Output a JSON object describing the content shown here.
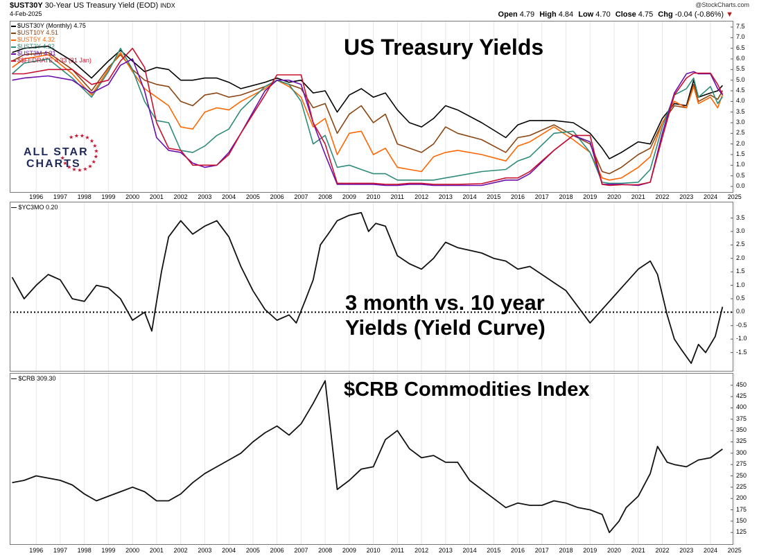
{
  "header": {
    "symbol": "$UST30Y",
    "description": "30-Year US Treasury Yield (EOD)",
    "exchange": "INDX",
    "date": "4-Feb-2025",
    "watermark": "@StockCharts.com",
    "ohlc": {
      "open_label": "Open",
      "open": "4.79",
      "high_label": "High",
      "high": "4.84",
      "low_label": "Low",
      "low": "4.70",
      "close_label": "Close",
      "close": "4.75",
      "chg_label": "Chg",
      "chg": "-0.04 (-0.86%)"
    }
  },
  "logo": {
    "line1": "ALL STAR",
    "line2": "CHARTS",
    "color": "#1f2a5a",
    "star_color": "#c8102e"
  },
  "x_labels": [
    "1996",
    "1997",
    "1998",
    "1999",
    "2000",
    "2001",
    "2002",
    "2003",
    "2004",
    "2005",
    "2006",
    "2007",
    "2008",
    "2009",
    "2010",
    "2011",
    "2012",
    "2013",
    "2014",
    "2015",
    "2016",
    "2017",
    "2018",
    "2019",
    "2020",
    "2021",
    "2022",
    "2023",
    "2024",
    "2025"
  ],
  "chart_data": [
    {
      "type": "line",
      "title": "US Treasury Yields",
      "ylim": [
        0,
        7.5
      ],
      "yticks": [
        "0.0",
        "0.5",
        "1.0",
        "1.5",
        "2.0",
        "2.5",
        "3.0",
        "3.5",
        "4.0",
        "4.5",
        "5.0",
        "5.5",
        "6.0",
        "6.5",
        "7.0",
        "7.5"
      ],
      "x": [
        1995.5,
        1996,
        1997,
        1998,
        1998.8,
        1999.5,
        2000,
        2000.5,
        2001,
        2001.5,
        2002,
        2002.5,
        2003,
        2003.5,
        2004,
        2004.5,
        2005,
        2006,
        2006.5,
        2007,
        2007.5,
        2008,
        2008.5,
        2009,
        2009.5,
        2010,
        2010.5,
        2011,
        2011.5,
        2012,
        2012.5,
        2013,
        2013.5,
        2014,
        2015,
        2016,
        2016.5,
        2017,
        2018,
        2018.8,
        2019.5,
        2020,
        2020.3,
        2020.8,
        2021.5,
        2022,
        2022.5,
        2023,
        2023.5,
        2023.8,
        2024,
        2024.5,
        2024.8,
        2025
      ],
      "series": [
        {
          "name": "$UST30Y (Monthly) 4.75",
          "color": "#000000",
          "values": [
            6.3,
            6.5,
            6.6,
            5.9,
            5.1,
            5.9,
            6.4,
            5.9,
            5.4,
            5.6,
            5.5,
            5.0,
            5.0,
            5.1,
            5.1,
            4.9,
            4.6,
            4.9,
            5.1,
            4.9,
            5.0,
            4.4,
            4.5,
            3.5,
            4.3,
            4.6,
            4.2,
            4.4,
            3.6,
            3.0,
            2.8,
            3.2,
            3.8,
            3.6,
            3.0,
            2.3,
            2.9,
            3.1,
            3.1,
            3.0,
            2.5,
            1.8,
            1.3,
            1.6,
            2.1,
            2.0,
            3.2,
            3.9,
            3.8,
            5.0,
            4.2,
            4.4,
            4.5,
            4.75
          ]
        },
        {
          "name": "$UST10Y 4.51",
          "color": "#8b4513",
          "values": [
            5.9,
            6.2,
            6.3,
            5.5,
            4.5,
            5.6,
            6.2,
            5.5,
            5.0,
            4.8,
            4.7,
            4.0,
            3.8,
            4.3,
            4.4,
            4.2,
            4.3,
            4.7,
            5.0,
            4.8,
            4.6,
            3.7,
            3.9,
            2.5,
            3.4,
            3.8,
            3.0,
            3.4,
            2.0,
            1.8,
            1.6,
            2.0,
            2.8,
            2.5,
            2.2,
            1.6,
            2.3,
            2.4,
            2.9,
            2.4,
            2.0,
            0.7,
            0.6,
            0.9,
            1.5,
            1.8,
            3.0,
            3.8,
            3.7,
            4.8,
            4.0,
            4.3,
            4.1,
            4.51
          ]
        },
        {
          "name": "$UST5Y 4.32",
          "color": "#ff6600",
          "values": [
            5.6,
            6.0,
            6.2,
            5.3,
            4.3,
            5.5,
            6.3,
            5.4,
            4.6,
            4.2,
            3.8,
            2.8,
            2.7,
            3.5,
            3.7,
            3.6,
            4.0,
            4.6,
            5.0,
            4.7,
            4.2,
            2.8,
            3.2,
            1.5,
            2.5,
            2.6,
            1.5,
            1.8,
            0.9,
            0.8,
            0.7,
            1.4,
            1.6,
            1.7,
            1.5,
            1.2,
            1.9,
            2.1,
            2.8,
            2.2,
            1.6,
            0.4,
            0.3,
            0.4,
            0.9,
            1.4,
            3.0,
            4.0,
            3.7,
            4.7,
            3.9,
            4.2,
            3.7,
            4.32
          ]
        },
        {
          "name": "$UST2Y 4.22",
          "color": "#2e8b7a",
          "values": [
            5.3,
            5.8,
            6.0,
            5.1,
            4.2,
            5.4,
            6.5,
            5.5,
            4.0,
            3.1,
            3.0,
            1.7,
            1.6,
            1.9,
            2.4,
            2.7,
            3.6,
            4.7,
            5.0,
            4.8,
            4.0,
            2.0,
            2.4,
            0.9,
            1.0,
            0.8,
            0.6,
            0.6,
            0.3,
            0.3,
            0.3,
            0.3,
            0.4,
            0.5,
            0.7,
            0.8,
            1.2,
            1.4,
            2.5,
            2.6,
            1.6,
            0.2,
            0.15,
            0.15,
            0.2,
            0.8,
            2.8,
            4.3,
            4.6,
            5.1,
            4.2,
            4.7,
            3.9,
            4.22
          ]
        },
        {
          "name": "$UST3M 4.31",
          "color": "#6a0dad",
          "values": [
            5.0,
            5.1,
            5.2,
            5.0,
            4.4,
            4.8,
            5.7,
            6.0,
            4.5,
            2.3,
            1.7,
            1.6,
            1.1,
            0.9,
            1.0,
            1.6,
            2.5,
            4.5,
            5.0,
            5.0,
            4.8,
            3.0,
            1.5,
            0.1,
            0.1,
            0.1,
            0.1,
            0.05,
            0.05,
            0.1,
            0.1,
            0.05,
            0.05,
            0.05,
            0.05,
            0.3,
            0.3,
            0.6,
            1.7,
            2.4,
            2.1,
            0.1,
            0.1,
            0.1,
            0.05,
            0.2,
            2.5,
            4.4,
            5.3,
            5.4,
            5.3,
            5.3,
            4.6,
            4.31
          ]
        },
        {
          "name": "$$FEDRATE 4.33 (31 Jan)",
          "color": "#c8102e",
          "values": [
            5.3,
            5.3,
            5.5,
            5.5,
            4.8,
            5.0,
            5.9,
            6.5,
            5.6,
            3.0,
            1.8,
            1.7,
            1.0,
            1.0,
            1.0,
            1.5,
            2.5,
            4.3,
            5.25,
            5.25,
            5.25,
            3.0,
            2.0,
            0.15,
            0.15,
            0.15,
            0.15,
            0.1,
            0.1,
            0.15,
            0.15,
            0.1,
            0.1,
            0.1,
            0.13,
            0.4,
            0.4,
            0.7,
            1.7,
            2.4,
            2.4,
            0.1,
            0.05,
            0.08,
            0.08,
            0.2,
            2.3,
            4.3,
            5.1,
            5.33,
            5.33,
            5.33,
            4.8,
            4.33
          ]
        }
      ]
    },
    {
      "type": "line",
      "title": "3 month vs. 10 year",
      "subtitle": "Yields (Yield Curve)",
      "series_label": "$YC3MO 0.20",
      "ylim": [
        -2.0,
        3.9
      ],
      "yticks": [
        "-1.5",
        "-1.0",
        "-0.5",
        "0.0",
        "0.5",
        "1.0",
        "1.5",
        "2.0",
        "2.5",
        "3.0",
        "3.5"
      ],
      "x": [
        1995.5,
        1996,
        1996.5,
        1997,
        1997.5,
        1998,
        1998.5,
        1999,
        1999.5,
        2000,
        2000.5,
        2001,
        2001.3,
        2001.7,
        2002,
        2002.5,
        2003,
        2003.5,
        2004,
        2004.5,
        2005,
        2005.5,
        2006,
        2006.5,
        2007,
        2007.3,
        2007.7,
        2008,
        2008.3,
        2008.7,
        2009,
        2009.5,
        2010,
        2010.3,
        2010.6,
        2011,
        2011.5,
        2012,
        2012.5,
        2013,
        2013.5,
        2014,
        2014.5,
        2015,
        2015.5,
        2016,
        2016.5,
        2017,
        2017.5,
        2018,
        2018.5,
        2019,
        2019.5,
        2020,
        2020.5,
        2021,
        2021.5,
        2022,
        2022.3,
        2022.7,
        2023,
        2023.3,
        2023.7,
        2024,
        2024.3,
        2024.7,
        2025
      ],
      "series": [
        {
          "name": "$YC3MO 0.20",
          "color": "#111111",
          "values": [
            1.3,
            0.5,
            1.0,
            1.4,
            1.2,
            0.5,
            0.4,
            1.0,
            0.9,
            0.5,
            -0.3,
            0.0,
            -0.7,
            1.5,
            2.8,
            3.4,
            2.9,
            3.2,
            3.4,
            2.8,
            1.7,
            0.8,
            0.1,
            -0.3,
            -0.1,
            -0.4,
            0.5,
            1.2,
            2.5,
            3.0,
            3.4,
            3.6,
            3.7,
            3.0,
            3.3,
            3.2,
            2.1,
            1.8,
            1.6,
            2.0,
            2.6,
            2.4,
            2.3,
            2.2,
            2.0,
            1.9,
            1.6,
            1.7,
            1.4,
            1.1,
            0.8,
            0.2,
            -0.4,
            0.1,
            0.6,
            1.1,
            1.6,
            1.9,
            1.4,
            -0.1,
            -1.0,
            -1.4,
            -1.9,
            -1.2,
            -1.5,
            -0.9,
            0.2
          ]
        }
      ]
    },
    {
      "type": "line",
      "title": "$CRB Commodities Index",
      "series_label": "$CRB 309.30",
      "ylim": [
        110,
        465
      ],
      "yticks": [
        "125",
        "150",
        "175",
        "200",
        "225",
        "250",
        "275",
        "300",
        "325",
        "350",
        "375",
        "400",
        "425",
        "450"
      ],
      "x": [
        1995.5,
        1996,
        1996.5,
        1997,
        1997.5,
        1998,
        1998.5,
        1999,
        1999.5,
        2000,
        2000.5,
        2001,
        2001.5,
        2002,
        2002.5,
        2003,
        2003.5,
        2004,
        2004.5,
        2005,
        2005.5,
        2006,
        2006.5,
        2007,
        2007.5,
        2008,
        2008.5,
        2009,
        2009.5,
        2010,
        2010.5,
        2011,
        2011.5,
        2012,
        2012.5,
        2013,
        2013.5,
        2014,
        2014.5,
        2015,
        2015.5,
        2016,
        2016.5,
        2017,
        2017.5,
        2018,
        2018.5,
        2019,
        2019.5,
        2020,
        2020.3,
        2020.7,
        2021,
        2021.5,
        2022,
        2022.3,
        2022.7,
        2023,
        2023.5,
        2024,
        2024.5,
        2025
      ],
      "series": [
        {
          "name": "$CRB 309.30",
          "color": "#111111",
          "values": [
            235,
            240,
            250,
            245,
            240,
            230,
            210,
            195,
            205,
            215,
            225,
            215,
            195,
            195,
            210,
            235,
            255,
            270,
            285,
            300,
            325,
            345,
            360,
            340,
            365,
            410,
            460,
            220,
            240,
            265,
            270,
            330,
            350,
            310,
            290,
            295,
            280,
            280,
            240,
            220,
            200,
            180,
            190,
            185,
            185,
            195,
            190,
            180,
            175,
            165,
            125,
            150,
            180,
            205,
            255,
            315,
            280,
            275,
            270,
            285,
            290,
            309
          ]
        }
      ]
    }
  ]
}
